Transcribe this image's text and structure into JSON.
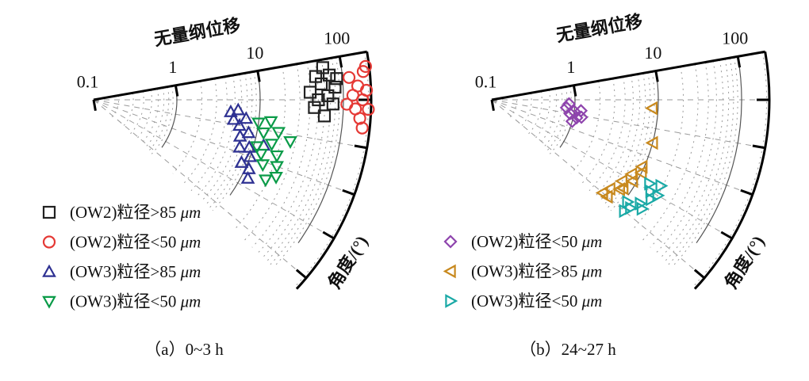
{
  "chart_data": [
    {
      "type": "scatter",
      "subtype": "polar-log",
      "caption": "（a）0~3 h",
      "radial_label": "无量纲位移",
      "angular_label": "角度/(°)",
      "radial_scale": "log",
      "radial_ticks": [
        "0.1",
        "1",
        "10",
        "100"
      ],
      "radial_range": [
        0.1,
        215
      ],
      "angular_range": [
        0,
        53
      ],
      "angular_ticks": [
        10,
        20,
        30,
        40,
        50
      ],
      "grid": true,
      "legend_position": "bottom-left",
      "series": [
        {
          "name": "(OW2)粒径>85 μm",
          "label_main": "(OW2)粒径>85 ",
          "label_unit": "μm",
          "marker": "square",
          "color": "#222222",
          "points": [
            [
              40,
              8
            ],
            [
              45,
              12
            ],
            [
              50,
              10
            ],
            [
              55,
              6
            ],
            [
              60,
              14
            ],
            [
              65,
              9
            ],
            [
              70,
              4
            ],
            [
              75,
              11
            ],
            [
              80,
              7
            ],
            [
              85,
              5
            ],
            [
              60,
              2
            ],
            [
              48,
              4
            ]
          ]
        },
        {
          "name": "(OW2)粒径<50 μm",
          "label_main": "(OW2)粒径<50 ",
          "label_unit": "μm",
          "marker": "circle",
          "color": "#e53935",
          "points": [
            [
              120,
              5
            ],
            [
              130,
              9
            ],
            [
              140,
              12
            ],
            [
              150,
              7
            ],
            [
              160,
              14
            ],
            [
              170,
              10
            ],
            [
              180,
              4
            ],
            [
              190,
              8
            ],
            [
              200,
              12
            ],
            [
              110,
              11
            ],
            [
              175,
              16
            ],
            [
              195,
              3
            ]
          ]
        },
        {
          "name": "(OW3)粒径>85 μm",
          "label_main": "(OW3)粒径>85 ",
          "label_unit": "μm",
          "marker": "triangle-up",
          "color": "#2e3192",
          "points": [
            [
              4.5,
              15
            ],
            [
              5,
              18
            ],
            [
              5.5,
              14
            ],
            [
              6,
              20
            ],
            [
              6.5,
              24
            ],
            [
              7,
              17
            ],
            [
              8,
              22
            ],
            [
              9,
              27
            ],
            [
              10,
              30
            ],
            [
              11,
              34
            ],
            [
              12,
              37
            ],
            [
              8.5,
              33
            ],
            [
              7,
              28
            ],
            [
              13,
              25
            ]
          ]
        },
        {
          "name": "(OW3)粒径<50 μm",
          "label_main": "(OW3)粒径<50 ",
          "label_unit": "μm",
          "marker": "triangle-down",
          "color": "#0a9b48",
          "points": [
            [
              10,
              18
            ],
            [
              12,
              21
            ],
            [
              14,
              17
            ],
            [
              16,
              24
            ],
            [
              18,
              20
            ],
            [
              20,
              27
            ],
            [
              22,
              30
            ],
            [
              24,
              33
            ],
            [
              15,
              31
            ],
            [
              13,
              28
            ],
            [
              19,
              35
            ],
            [
              26,
              22
            ],
            [
              11,
              26
            ]
          ]
        }
      ]
    },
    {
      "type": "scatter",
      "subtype": "polar-log",
      "caption": "（b）24~27 h",
      "radial_label": "无量纲位移",
      "angular_label": "角度/(°)",
      "radial_scale": "log",
      "radial_ticks": [
        "0.1",
        "1",
        "10",
        "100"
      ],
      "radial_range": [
        0.1,
        215
      ],
      "angular_range": [
        0,
        53
      ],
      "angular_ticks": [
        10,
        20,
        30,
        40,
        50
      ],
      "grid": true,
      "legend_position": "bottom-left",
      "series": [
        {
          "name": "(OW2)粒径<50 μm",
          "label_main": "(OW2)粒径<50 ",
          "label_unit": "μm",
          "marker": "diamond",
          "color": "#8e44ad",
          "points": [
            [
              0.8,
              16
            ],
            [
              0.9,
              20
            ],
            [
              1.0,
              18
            ],
            [
              1.1,
              22
            ],
            [
              1.2,
              17
            ],
            [
              1.0,
              25
            ],
            [
              0.85,
              13
            ],
            [
              1.25,
              21
            ]
          ]
        },
        {
          "name": "(OW3)粒径>85 μm",
          "label_main": "(OW3)粒径>85 ",
          "label_unit": "μm",
          "marker": "triangle-left",
          "color": "#c8891e",
          "points": [
            [
              8.5,
              13
            ],
            [
              10,
              25
            ],
            [
              9.5,
              34
            ],
            [
              8,
              38
            ],
            [
              7,
              42
            ],
            [
              6,
              47
            ],
            [
              5.5,
              50
            ],
            [
              9,
              40
            ],
            [
              7.5,
              45
            ],
            [
              6.5,
              50
            ],
            [
              10,
              36
            ],
            [
              8,
              44
            ]
          ]
        },
        {
          "name": "(OW3)粒径<50 μm",
          "label_main": "(OW3)粒径<50 ",
          "label_unit": "μm",
          "marker": "triangle-right",
          "color": "#1aa9a6",
          "points": [
            [
              14,
              38
            ],
            [
              16,
              40
            ],
            [
              18,
              42
            ],
            [
              15,
              45
            ],
            [
              13,
              48
            ],
            [
              12,
              50
            ],
            [
              17,
              46
            ],
            [
              19,
              37
            ],
            [
              11,
              47
            ],
            [
              20,
              40
            ]
          ]
        }
      ]
    }
  ]
}
